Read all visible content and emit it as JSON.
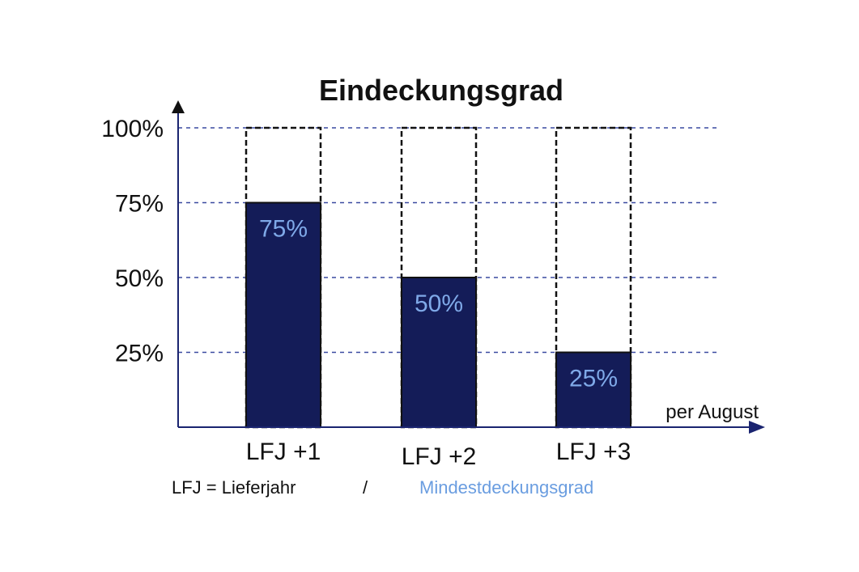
{
  "chart_data": {
    "type": "bar",
    "title": "Eindeckungsgrad",
    "categories": [
      "LFJ +1",
      "LFJ +2",
      "LFJ +3"
    ],
    "values": [
      75,
      50,
      25
    ],
    "value_labels": [
      "75%",
      "50%",
      "25%"
    ],
    "target_values": [
      100,
      100,
      100
    ],
    "ylim": [
      0,
      100
    ],
    "yticks": [
      25,
      50,
      75,
      100
    ],
    "ytick_labels": [
      "25%",
      "50%",
      "75%",
      "100%"
    ],
    "xlabel": "per August",
    "ylabel": "",
    "grid": true,
    "footnote": "LFJ = Lieferjahr",
    "separator": "/",
    "legend_label": "Mindestdeckungsgrad",
    "colors": {
      "bar": "#141c58",
      "axis": "#1a2470",
      "grid": "#3a4aa0",
      "value_label": "#7fa9e8",
      "legend": "#6a9de0",
      "outline": "#111111"
    }
  }
}
